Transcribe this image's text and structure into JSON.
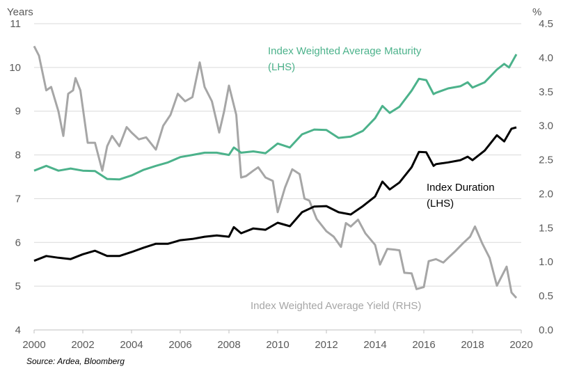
{
  "chart_data": {
    "type": "line",
    "left_axis": {
      "unit_label": "Years",
      "range": [
        4,
        11
      ],
      "ticks": [
        "4",
        "5",
        "6",
        "7",
        "8",
        "9",
        "10",
        "11"
      ]
    },
    "right_axis": {
      "unit_label": "%",
      "range": [
        0,
        4.5
      ],
      "ticks": [
        "0.0",
        "0.5",
        "1.0",
        "1.5",
        "2.0",
        "2.5",
        "3.0",
        "3.5",
        "4.0",
        "4.5"
      ]
    },
    "x_axis": {
      "range": [
        2000,
        2020
      ],
      "ticks": [
        "2000",
        "2002",
        "2004",
        "2006",
        "2008",
        "2010",
        "2012",
        "2014",
        "2016",
        "2018",
        "2020"
      ]
    },
    "grid": "horizontal",
    "series": [
      {
        "name": "Index Weighted Average Maturity (LHS)",
        "label_lines": [
          "Index Weighted Average Maturity",
          "(LHS)"
        ],
        "axis": "left",
        "color": "#4cb28b",
        "x": [
          2000,
          2000.5,
          2001,
          2001.5,
          2002,
          2002.5,
          2003,
          2003.5,
          2004,
          2004.5,
          2005,
          2005.5,
          2006,
          2006.5,
          2007,
          2007.5,
          2008,
          2008.2,
          2008.5,
          2009,
          2009.5,
          2010,
          2010.5,
          2011,
          2011.5,
          2012,
          2012.5,
          2013,
          2013.5,
          2014,
          2014.3,
          2014.6,
          2015,
          2015.5,
          2015.8,
          2016.1,
          2016.4,
          2016.5,
          2017,
          2017.5,
          2017.8,
          2018,
          2018.5,
          2019,
          2019.3,
          2019.5,
          2019.7,
          2019.8
        ],
        "y": [
          7.64,
          7.75,
          7.64,
          7.69,
          7.64,
          7.63,
          7.45,
          7.44,
          7.53,
          7.66,
          7.75,
          7.83,
          7.95,
          8.0,
          8.05,
          8.05,
          8.0,
          8.17,
          8.05,
          8.08,
          8.04,
          8.26,
          8.17,
          8.47,
          8.58,
          8.57,
          8.39,
          8.42,
          8.55,
          8.84,
          9.12,
          8.96,
          9.1,
          9.47,
          9.74,
          9.71,
          9.39,
          9.42,
          9.52,
          9.57,
          9.66,
          9.54,
          9.66,
          9.95,
          10.08,
          10.0,
          10.2,
          10.3
        ]
      },
      {
        "name": "Index Duration (LHS)",
        "label_lines": [
          "Index Duration",
          "(LHS)"
        ],
        "axis": "left",
        "color": "#000000",
        "x": [
          2000,
          2000.5,
          2001,
          2001.5,
          2002,
          2002.5,
          2003,
          2003.5,
          2004,
          2004.5,
          2005,
          2005.5,
          2006,
          2006.5,
          2007,
          2007.5,
          2008,
          2008.2,
          2008.5,
          2009,
          2009.5,
          2010,
          2010.5,
          2011,
          2011.5,
          2012,
          2012.5,
          2013,
          2013.5,
          2014,
          2014.3,
          2014.6,
          2015,
          2015.5,
          2015.8,
          2016.1,
          2016.4,
          2016.5,
          2017,
          2017.5,
          2017.8,
          2018,
          2018.5,
          2019,
          2019.3,
          2019.6,
          2019.8
        ],
        "y": [
          5.58,
          5.69,
          5.65,
          5.62,
          5.73,
          5.81,
          5.69,
          5.69,
          5.78,
          5.88,
          5.97,
          5.97,
          6.05,
          6.08,
          6.13,
          6.16,
          6.13,
          6.35,
          6.21,
          6.32,
          6.29,
          6.45,
          6.37,
          6.69,
          6.82,
          6.83,
          6.69,
          6.64,
          6.83,
          7.05,
          7.39,
          7.21,
          7.37,
          7.72,
          8.07,
          8.06,
          7.75,
          7.79,
          7.83,
          7.88,
          7.96,
          7.88,
          8.1,
          8.45,
          8.31,
          8.6,
          8.63
        ]
      },
      {
        "name": "Index Weighted Average Yield (RHS)",
        "label_lines": [
          "Index Weighted Average Yield (RHS)"
        ],
        "axis": "right",
        "color": "#a6a6a6",
        "x": [
          2000,
          2000.2,
          2000.5,
          2000.7,
          2001,
          2001.2,
          2001.4,
          2001.6,
          2001.7,
          2001.9,
          2002.2,
          2002.5,
          2002.8,
          2003,
          2003.2,
          2003.5,
          2003.8,
          2004,
          2004.3,
          2004.6,
          2005,
          2005.3,
          2005.6,
          2005.9,
          2006.2,
          2006.5,
          2006.8,
          2007,
          2007.3,
          2007.6,
          2007.8,
          2008,
          2008.3,
          2008.5,
          2008.7,
          2009,
          2009.2,
          2009.5,
          2009.8,
          2010,
          2010.3,
          2010.6,
          2010.9,
          2011.1,
          2011.3,
          2011.6,
          2012,
          2012.3,
          2012.6,
          2012.8,
          2013,
          2013.3,
          2013.6,
          2014,
          2014.2,
          2014.5,
          2014.8,
          2015,
          2015.2,
          2015.5,
          2015.7,
          2016,
          2016.2,
          2016.5,
          2016.8,
          2017,
          2017.3,
          2017.6,
          2017.9,
          2018.1,
          2018.4,
          2018.7,
          2019,
          2019.4,
          2019.6,
          2019.8
        ],
        "y": [
          4.17,
          4.03,
          3.52,
          3.57,
          3.21,
          2.85,
          3.47,
          3.52,
          3.7,
          3.52,
          2.75,
          2.75,
          2.34,
          2.7,
          2.85,
          2.7,
          2.98,
          2.9,
          2.8,
          2.83,
          2.65,
          3.0,
          3.16,
          3.47,
          3.36,
          3.42,
          3.93,
          3.57,
          3.36,
          2.9,
          3.21,
          3.59,
          3.16,
          2.24,
          2.26,
          2.34,
          2.39,
          2.24,
          2.19,
          1.73,
          2.09,
          2.36,
          2.29,
          1.93,
          1.9,
          1.63,
          1.45,
          1.37,
          1.22,
          1.57,
          1.52,
          1.62,
          1.42,
          1.25,
          0.96,
          1.19,
          1.18,
          1.17,
          0.84,
          0.83,
          0.6,
          0.63,
          1.01,
          1.04,
          0.99,
          1.06,
          1.16,
          1.27,
          1.37,
          1.52,
          1.27,
          1.06,
          0.65,
          0.93,
          0.55,
          0.47
        ]
      }
    ]
  },
  "source": "Source: Ardea, Bloomberg"
}
